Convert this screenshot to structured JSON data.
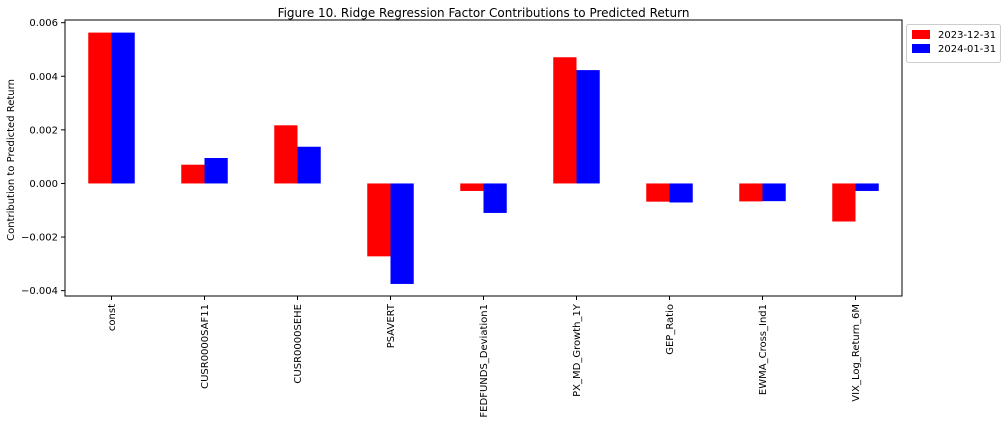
{
  "chart_data": {
    "type": "bar",
    "title": "Figure 10. Ridge Regression Factor Contributions to Predicted Return",
    "xlabel": "",
    "ylabel": "Contribution to Predicted Return",
    "categories": [
      "const",
      "CUSR0000SAF11",
      "CUSR0000SEHE",
      "PSAVERT",
      "FEDFUNDS_Deviation1",
      "PX_MD_Growth_1Y",
      "GEP_Ratio",
      "EWMA_Cross_Ind1",
      "VIX_Log_Return_6M"
    ],
    "series": [
      {
        "name": "2023-12-31",
        "color": "#ff0000",
        "values": [
          0.00563,
          0.0007,
          0.00217,
          -0.00272,
          -0.00028,
          0.00471,
          -0.00068,
          -0.00067,
          -0.00142
        ]
      },
      {
        "name": "2024-01-31",
        "color": "#0000ff",
        "values": [
          0.00563,
          0.00095,
          0.00137,
          -0.00375,
          -0.0011,
          0.00423,
          -0.00071,
          -0.00066,
          -0.00028
        ]
      }
    ],
    "ylim": [
      -0.0042,
      0.0061
    ],
    "yticks": [
      -0.004,
      -0.002,
      0.0,
      0.002,
      0.004,
      0.006
    ],
    "ytick_labels": [
      "−0.004",
      "−0.002",
      "0.000",
      "0.002",
      "0.004",
      "0.006"
    ],
    "grid": false,
    "legend": "outside-top-right"
  }
}
